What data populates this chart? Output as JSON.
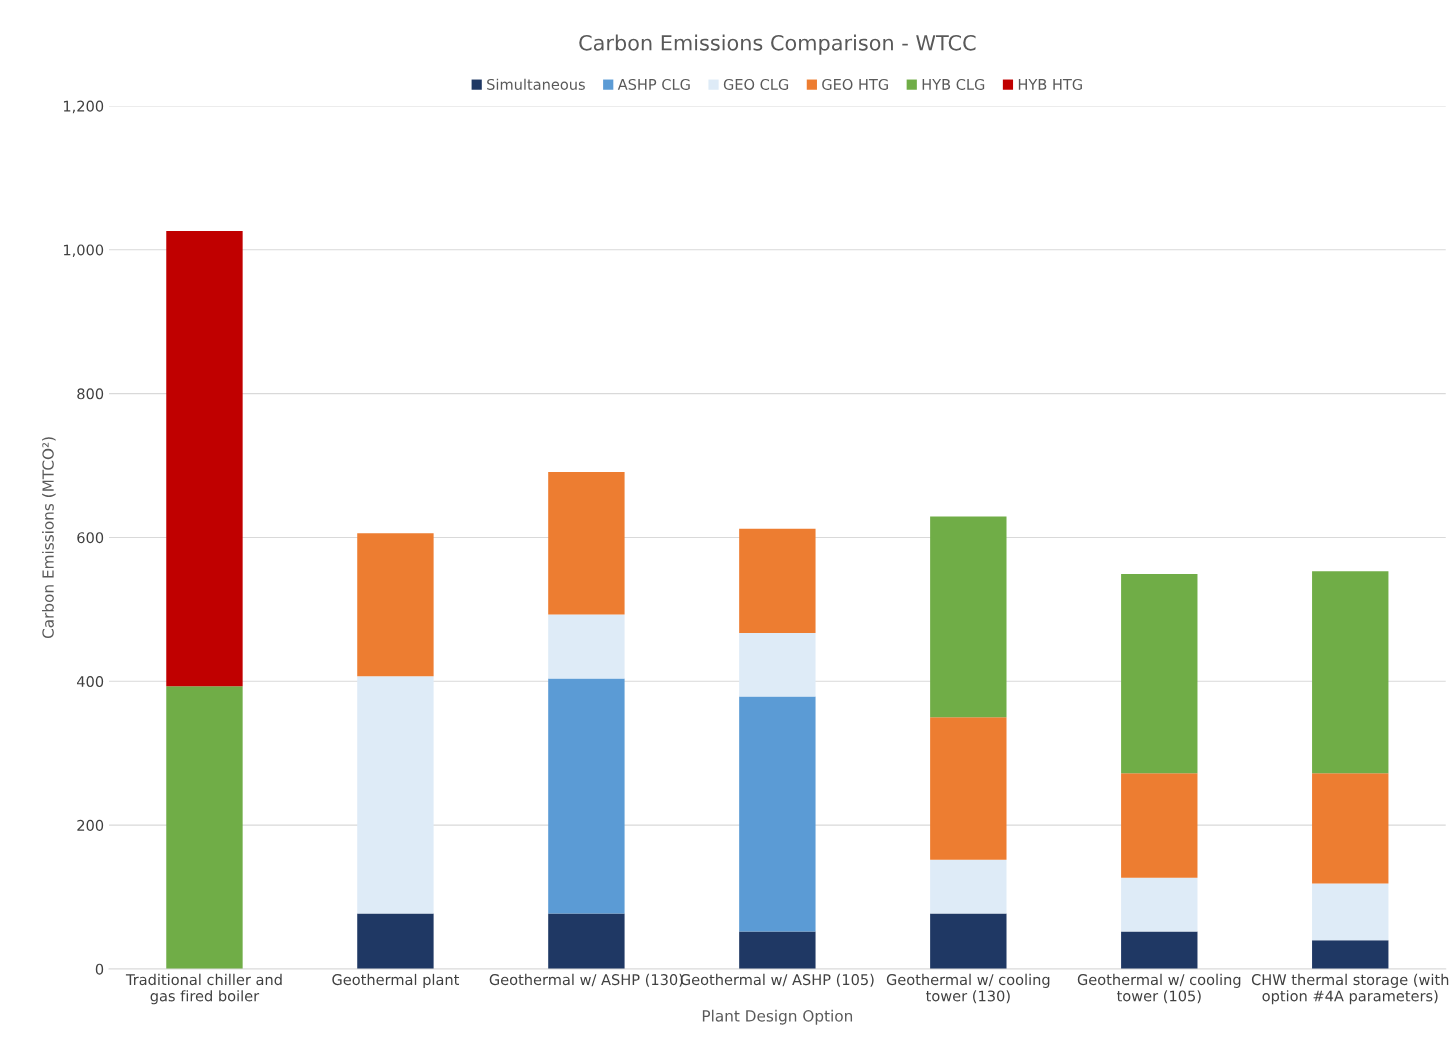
{
  "chart_data": {
    "type": "bar",
    "title": "Carbon Emissions Comparison - WTCC",
    "xlabel": "Plant Design Option",
    "ylabel": "Carbon Emissions (MTCO²)",
    "categories": [
      "Traditional chiller and gas fired boiler",
      "Geothermal plant",
      "Geothermal w/ ASHP (130)",
      "Geothermal w/ ASHP (105)",
      "Geothermal w/ cooling tower (130)",
      "Geothermal w/ cooling tower (105)",
      "CHW thermal storage (with option #4A parameters)"
    ],
    "stacked": true,
    "series": [
      {
        "name": "Simultaneous",
        "color": "#1f3864",
        "values": [
          null,
          77,
          77,
          52,
          77,
          52,
          40
        ]
      },
      {
        "name": "ASHP CLG",
        "color": "#5b9bd5",
        "values": [
          null,
          null,
          327,
          327,
          null,
          null,
          null
        ]
      },
      {
        "name": "GEO CLG",
        "color": "#deebf7",
        "values": [
          null,
          330,
          89,
          88,
          75,
          75,
          79
        ]
      },
      {
        "name": "GEO HTG",
        "color": "#ed7d31",
        "values": [
          null,
          199,
          198,
          145,
          198,
          145,
          153
        ]
      },
      {
        "name": "HYB CLG",
        "color": "#70ad47",
        "values": [
          393,
          null,
          null,
          null,
          279,
          277,
          281
        ]
      },
      {
        "name": "HYB HTG",
        "color": "#c00000",
        "values": [
          633,
          null,
          null,
          null,
          null,
          null,
          null
        ]
      }
    ],
    "ylim": [
      0,
      1200
    ],
    "yticks": [
      0,
      200,
      400,
      600,
      800,
      {
        "value": 1000,
        "label": "1,000"
      },
      {
        "value": 1200,
        "label": "1,200"
      }
    ],
    "grid": "y",
    "legend": "top"
  }
}
